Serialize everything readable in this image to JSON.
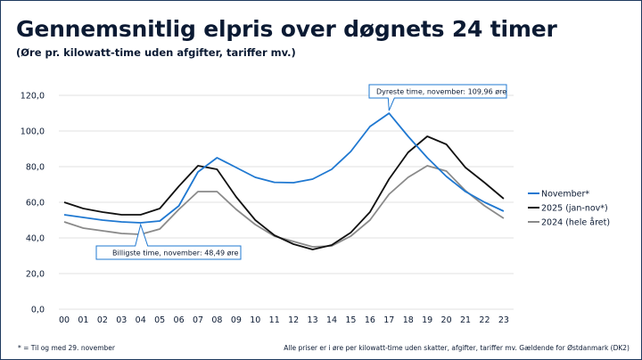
{
  "chart_data": {
    "type": "line",
    "title": "Gennemsnitlig elpris over døgnets 24 timer",
    "subtitle": "(Øre pr. kilowatt-time uden afgifter, tariffer mv.)",
    "categories": [
      "00",
      "01",
      "02",
      "03",
      "04",
      "05",
      "06",
      "07",
      "08",
      "09",
      "10",
      "11",
      "12",
      "13",
      "14",
      "15",
      "16",
      "17",
      "18",
      "19",
      "20",
      "21",
      "22",
      "23"
    ],
    "ylim": [
      0,
      120
    ],
    "yticks": [
      "0,0",
      "20,0",
      "40,0",
      "60,0",
      "80,0",
      "100,0",
      "120,0"
    ],
    "ytick_values": [
      0,
      20,
      40,
      60,
      80,
      100,
      120
    ],
    "grid": true,
    "legend_position": "right",
    "series": [
      {
        "name": "November*",
        "color": "#1f78d1",
        "width": 1.8,
        "values": [
          53,
          51.5,
          50,
          49,
          48.5,
          49.5,
          58,
          77,
          85,
          79.5,
          74,
          71.2,
          71,
          73,
          78.5,
          88.5,
          102.5,
          109.96,
          97,
          85,
          74.5,
          66,
          60,
          55
        ]
      },
      {
        "name": "2025 (jan-nov*)",
        "color": "#111111",
        "width": 1.8,
        "values": [
          60,
          56.5,
          54.5,
          53,
          53,
          56.5,
          69,
          80.5,
          78.5,
          63,
          50,
          41.5,
          36.5,
          33.5,
          36,
          43,
          54.5,
          73,
          88,
          97,
          92.5,
          79.5,
          71,
          62
        ]
      },
      {
        "name": "2024 (hele året)",
        "color": "#8a8a8a",
        "width": 1.8,
        "values": [
          49,
          45.5,
          44,
          42.5,
          42,
          45,
          56,
          66,
          66,
          56,
          47.5,
          41,
          38,
          35,
          35.5,
          41,
          50,
          64.5,
          74,
          80.5,
          77.5,
          66.5,
          58,
          51
        ]
      }
    ],
    "annotations": [
      {
        "text": "Dyreste time, november: 109,96 øre",
        "x": "17",
        "y": 109.96
      },
      {
        "text": "Billigste time, november: 48,49 øre",
        "x": "04",
        "y": 48.49
      }
    ]
  },
  "footer": {
    "note": "* = Til og med 29. november",
    "source": "Alle priser er i øre per kilowatt-time uden skatter, afgifter, tariffer mv. Gældende for Østdanmark (DK2)"
  }
}
